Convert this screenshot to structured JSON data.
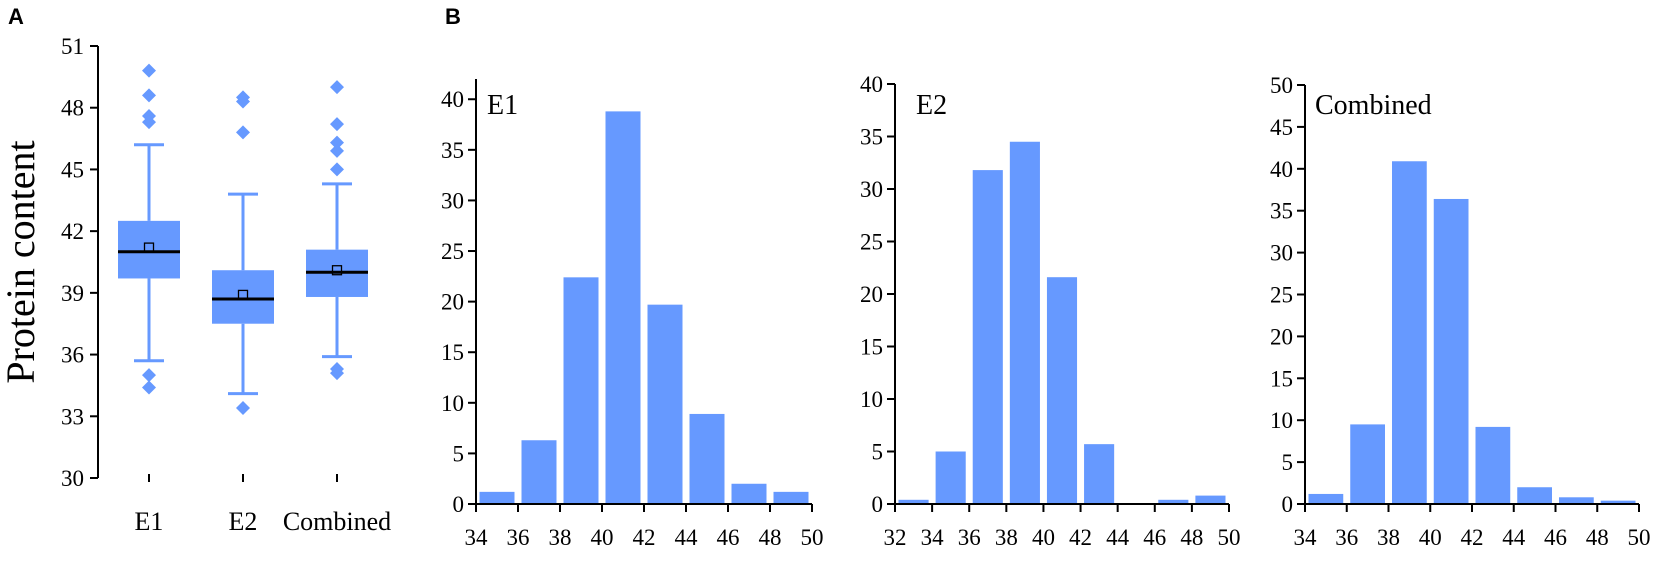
{
  "colors": {
    "fill": "#6699FF",
    "median": "#000000",
    "axis": "#000000"
  },
  "panels": {
    "a": "A",
    "b": "B"
  },
  "chart_data": [
    {
      "type": "box",
      "ylabel": "Protein content",
      "categories": [
        "E1",
        "E2",
        "Combined"
      ],
      "ylim": [
        30,
        51
      ],
      "yticks": [
        30,
        33,
        36,
        39,
        42,
        45,
        48,
        51
      ],
      "boxes": [
        {
          "name": "E1",
          "whisker_low": 35.7,
          "q1": 39.7,
          "median": 41.0,
          "q3": 42.5,
          "whisker_high": 46.2,
          "mean": 41.2,
          "outliers": [
            49.8,
            48.6,
            47.6,
            47.3,
            35.0,
            34.4
          ]
        },
        {
          "name": "E2",
          "whisker_low": 34.1,
          "q1": 37.5,
          "median": 38.7,
          "q3": 40.1,
          "whisker_high": 43.8,
          "mean": 38.9,
          "outliers": [
            48.5,
            48.3,
            46.8,
            33.4
          ]
        },
        {
          "name": "Combined",
          "whisker_low": 35.9,
          "q1": 38.8,
          "median": 40.0,
          "q3": 41.1,
          "whisker_high": 44.3,
          "mean": 40.1,
          "outliers": [
            49.0,
            47.2,
            46.3,
            45.9,
            45.0,
            35.3,
            35.1
          ]
        }
      ]
    },
    {
      "type": "bar",
      "title": "E1",
      "xlim": [
        34,
        50
      ],
      "xticks": [
        34,
        36,
        38,
        40,
        42,
        44,
        46,
        48,
        50
      ],
      "ylim": [
        0,
        42
      ],
      "yticks": [
        0,
        5,
        10,
        15,
        20,
        25,
        30,
        35,
        40
      ],
      "bins": [
        [
          34,
          36
        ],
        [
          36,
          38
        ],
        [
          38,
          40
        ],
        [
          40,
          42
        ],
        [
          42,
          44
        ],
        [
          44,
          46
        ],
        [
          46,
          48
        ],
        [
          48,
          50
        ]
      ],
      "values": [
        1.2,
        6.3,
        22.4,
        38.8,
        19.7,
        8.9,
        2.0,
        1.2
      ]
    },
    {
      "type": "bar",
      "title": "E2",
      "xlim": [
        32,
        50
      ],
      "xticks": [
        32,
        34,
        36,
        38,
        40,
        42,
        44,
        46,
        48,
        50
      ],
      "ylim": [
        0,
        40
      ],
      "yticks": [
        0,
        5,
        10,
        15,
        20,
        25,
        30,
        35,
        40
      ],
      "bins": [
        [
          32,
          34
        ],
        [
          34,
          36
        ],
        [
          36,
          38
        ],
        [
          38,
          40
        ],
        [
          40,
          42
        ],
        [
          42,
          44
        ],
        [
          44,
          46
        ],
        [
          46,
          48
        ],
        [
          48,
          50
        ]
      ],
      "values": [
        0.4,
        5.0,
        31.8,
        34.5,
        21.6,
        5.7,
        0,
        0.4,
        0.8
      ]
    },
    {
      "type": "bar",
      "title": "Combined",
      "xlim": [
        34,
        50
      ],
      "xticks": [
        34,
        36,
        38,
        40,
        42,
        44,
        46,
        48,
        50
      ],
      "ylim": [
        0,
        50
      ],
      "yticks": [
        0,
        5,
        10,
        15,
        20,
        25,
        30,
        35,
        40,
        45,
        50
      ],
      "bins": [
        [
          34,
          36
        ],
        [
          36,
          38
        ],
        [
          38,
          40
        ],
        [
          40,
          42
        ],
        [
          42,
          44
        ],
        [
          44,
          46
        ],
        [
          46,
          48
        ],
        [
          48,
          50
        ]
      ],
      "values": [
        1.2,
        9.5,
        40.9,
        36.4,
        9.2,
        2.0,
        0.8,
        0.4
      ]
    }
  ]
}
